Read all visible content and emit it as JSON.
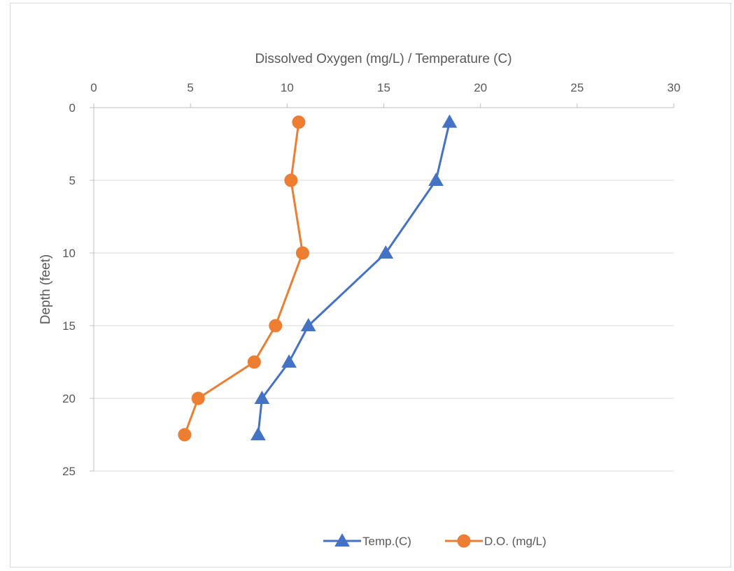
{
  "chart_data": {
    "type": "line",
    "title": "",
    "xlabel": "Dissolved Oxygen (mg/L) / Temperature (C)",
    "ylabel": "Depth (feet)",
    "xlim": [
      0,
      30
    ],
    "ylim": [
      0,
      25
    ],
    "y_reversed": true,
    "x_axis_position": "top",
    "xticks": [
      "0",
      "5",
      "10",
      "15",
      "20",
      "25",
      "30"
    ],
    "yticks": [
      "0",
      "5",
      "10",
      "15",
      "20",
      "25"
    ],
    "grid": "horizontal",
    "legend_position": "bottom",
    "series": [
      {
        "name": "Temp.(C)",
        "color": "#4472c4",
        "marker": "triangle",
        "points": [
          {
            "x": 18.4,
            "y": 1
          },
          {
            "x": 17.7,
            "y": 5
          },
          {
            "x": 15.1,
            "y": 10
          },
          {
            "x": 11.1,
            "y": 15
          },
          {
            "x": 10.1,
            "y": 17.5
          },
          {
            "x": 8.7,
            "y": 20
          },
          {
            "x": 8.5,
            "y": 22.5
          }
        ]
      },
      {
        "name": "D.O. (mg/L)",
        "color": "#ed7d31",
        "marker": "circle",
        "points": [
          {
            "x": 10.6,
            "y": 1
          },
          {
            "x": 10.2,
            "y": 5
          },
          {
            "x": 10.8,
            "y": 10
          },
          {
            "x": 9.4,
            "y": 15
          },
          {
            "x": 8.3,
            "y": 17.5
          },
          {
            "x": 5.4,
            "y": 20
          },
          {
            "x": 4.7,
            "y": 22.5
          }
        ]
      }
    ]
  }
}
